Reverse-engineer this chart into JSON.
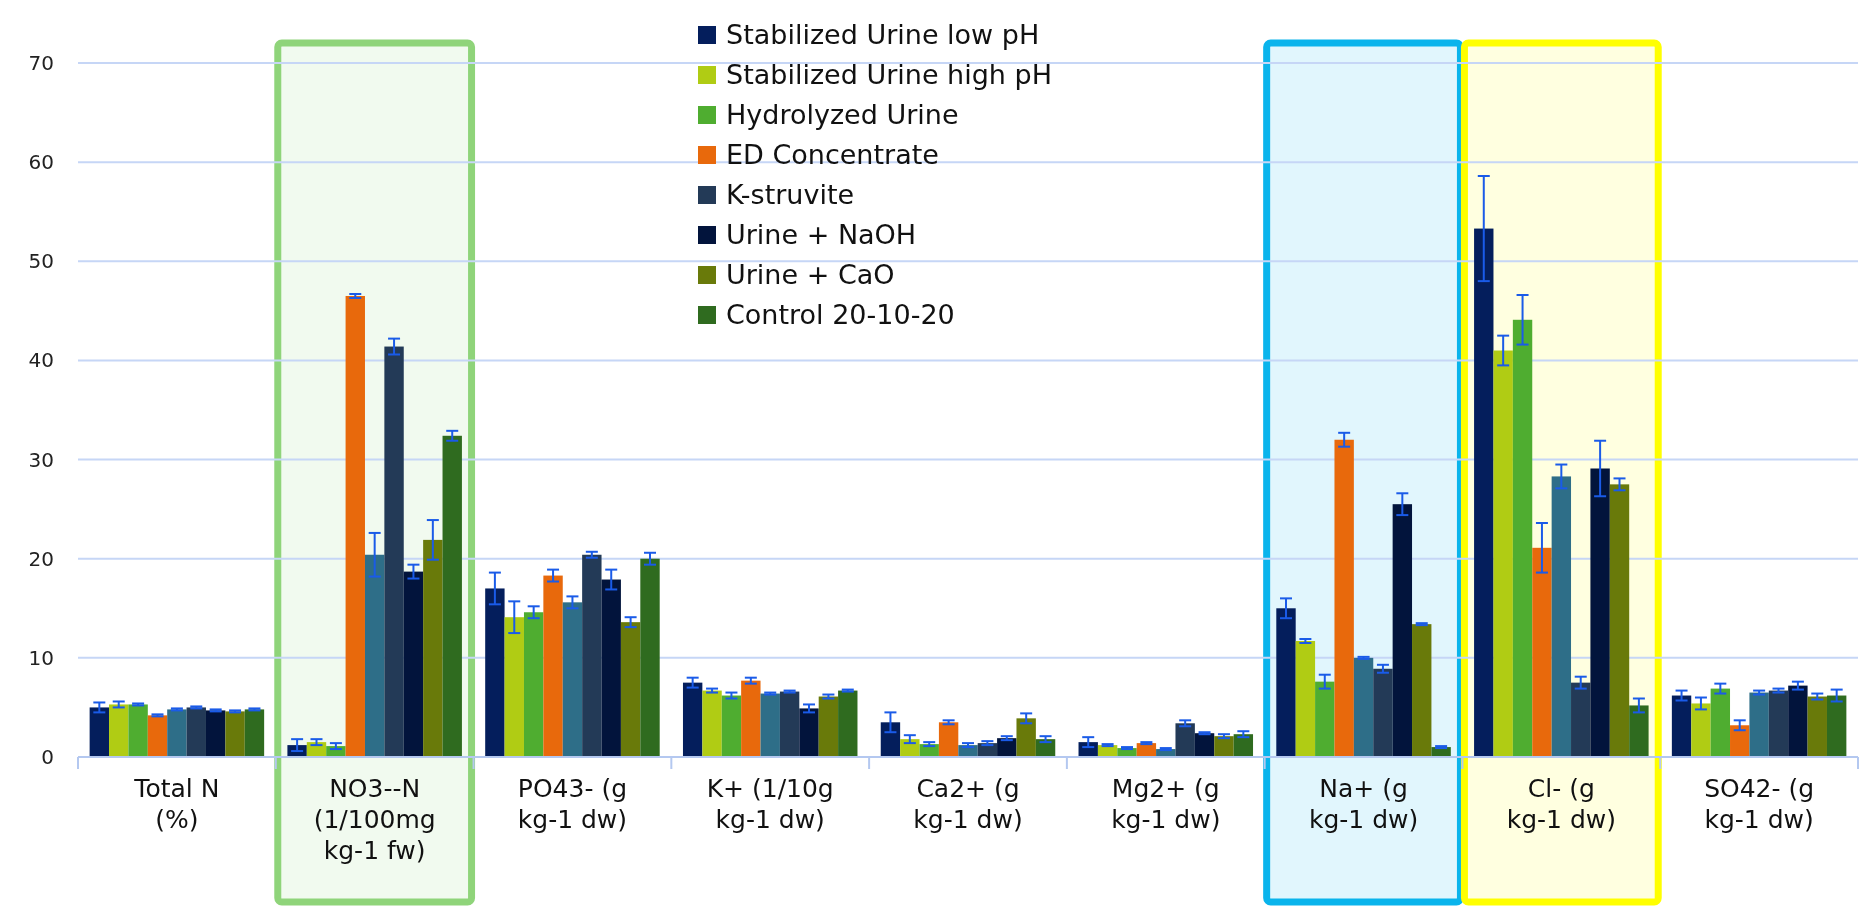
{
  "chart_data": {
    "type": "bar",
    "categories": [
      "Total N (%)",
      "NO3--N (1/100mg kg-1 fw)",
      "PO43- (g kg-1 dw)",
      "K+ (1/10g kg-1 dw)",
      "Ca2+ (g kg-1 dw)",
      "Mg2+ (g kg-1 dw)",
      "Na+ (g kg-1 dw)",
      "Cl- (g kg-1 dw)",
      "SO42- (g kg-1 dw)"
    ],
    "series": [
      {
        "name": "Stabilized Urine low pH",
        "color": "#041e5c",
        "values": [
          5.0,
          1.2,
          17.0,
          7.5,
          3.5,
          1.5,
          15.0,
          53.3,
          6.2
        ],
        "errors": [
          0.5,
          0.6,
          1.6,
          0.5,
          1.0,
          0.5,
          1.0,
          5.3,
          0.5
        ]
      },
      {
        "name": "Stabilized Urine high pH",
        "color": "#b0cc14",
        "values": [
          5.3,
          1.5,
          14.1,
          6.7,
          1.8,
          1.2,
          11.7,
          41.0,
          5.4
        ],
        "errors": [
          0.3,
          0.3,
          1.6,
          0.2,
          0.4,
          0.1,
          0.2,
          1.5,
          0.6
        ]
      },
      {
        "name": "Hydrolyzed Urine",
        "color": "#4fad30",
        "values": [
          5.3,
          1.1,
          14.6,
          6.2,
          1.3,
          0.9,
          7.6,
          44.1,
          6.9
        ],
        "errors": [
          0.1,
          0.3,
          0.6,
          0.3,
          0.2,
          0.1,
          0.7,
          2.5,
          0.5
        ]
      },
      {
        "name": "ED Concentrate",
        "color": "#e8690c",
        "values": [
          4.2,
          46.5,
          18.3,
          7.7,
          3.5,
          1.4,
          32.0,
          21.1,
          3.2
        ],
        "errors": [
          0.1,
          0.2,
          0.6,
          0.3,
          0.2,
          0.1,
          0.7,
          2.5,
          0.5
        ]
      },
      {
        "color": "#2e6e88",
        "values": [
          4.8,
          20.4,
          15.6,
          6.4,
          1.2,
          0.8,
          10.0,
          28.3,
          6.5
        ],
        "errors": [
          0.1,
          2.2,
          0.6,
          0.1,
          0.2,
          0.1,
          0.1,
          1.2,
          0.2
        ]
      },
      {
        "name": "K-struvite",
        "color": "#233a57",
        "values": [
          5.0,
          41.4,
          20.4,
          6.6,
          1.4,
          3.4,
          8.9,
          7.5,
          6.7
        ],
        "errors": [
          0.1,
          0.8,
          0.3,
          0.1,
          0.2,
          0.3,
          0.4,
          0.6,
          0.2
        ]
      },
      {
        "name": "Urine + NaOH",
        "color": "#02143c",
        "values": [
          4.7,
          18.7,
          17.9,
          4.9,
          1.9,
          2.4,
          25.5,
          29.1,
          7.2
        ],
        "errors": [
          0.1,
          0.7,
          1.0,
          0.4,
          0.2,
          0.1,
          1.1,
          2.8,
          0.4
        ]
      },
      {
        "name": "Urine + CaO",
        "color": "#697a0a",
        "values": [
          4.6,
          21.9,
          13.6,
          6.1,
          3.9,
          2.1,
          13.4,
          27.5,
          6.1
        ],
        "errors": [
          0.1,
          2.0,
          0.5,
          0.2,
          0.5,
          0.2,
          0.1,
          0.6,
          0.3
        ]
      },
      {
        "name": "Control 20-10-20",
        "color": "#2f6b1f",
        "values": [
          4.8,
          32.4,
          20.0,
          6.7,
          1.8,
          2.3,
          1.0,
          5.2,
          6.2
        ],
        "errors": [
          0.1,
          0.5,
          0.6,
          0.1,
          0.3,
          0.3,
          0.1,
          0.7,
          0.6
        ]
      }
    ],
    "ylim": [
      0,
      70
    ],
    "yticks": [
      0,
      10,
      20,
      30,
      40,
      50,
      60,
      70
    ],
    "grid": "y",
    "legend": "top",
    "bands": [
      {
        "axis": "x",
        "from": "NO3--N (1/100mg kg-1 fw)",
        "to": "NO3--N (1/100mg kg-1 fw)",
        "color": "#8fd47a"
      },
      {
        "axis": "x",
        "from": "Na+ (g kg-1 dw)",
        "to": "Na+ (g kg-1 dw)",
        "color": "#0ab4ec"
      },
      {
        "axis": "x",
        "from": "Cl- (g kg-1 dw)",
        "to": "Cl- (g kg-1 dw)",
        "color": "#ffff00"
      }
    ]
  }
}
